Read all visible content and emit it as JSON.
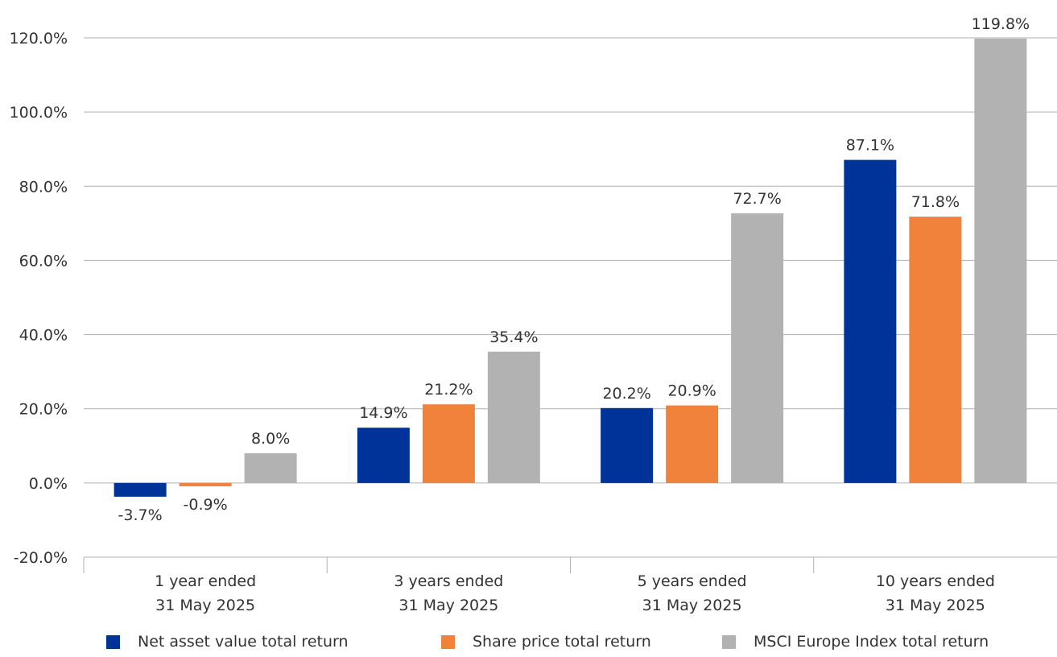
{
  "chart_data": {
    "type": "bar",
    "categories": [
      [
        "1 year ended",
        "31 May 2025"
      ],
      [
        "3 years ended",
        "31 May 2025"
      ],
      [
        "5 years ended",
        "31 May 2025"
      ],
      [
        "10 years ended",
        "31 May 2025"
      ]
    ],
    "series": [
      {
        "name": "Net asset value total return",
        "color": "#003399",
        "values": [
          -3.7,
          14.9,
          20.2,
          87.1
        ],
        "labels": [
          "-3.7%",
          "14.9%",
          "20.2%",
          "87.1%"
        ]
      },
      {
        "name": "Share price total return",
        "color": "#F0823C",
        "values": [
          -0.9,
          21.2,
          20.9,
          71.8
        ],
        "labels": [
          "-0.9%",
          "21.2%",
          "20.9%",
          "71.8%"
        ]
      },
      {
        "name": "MSCI Europe Index total return",
        "color": "#B2B2B2",
        "values": [
          8.0,
          35.4,
          72.7,
          119.8
        ],
        "labels": [
          "8.0%",
          "35.4%",
          "72.7%",
          "119.8%"
        ]
      }
    ],
    "yticks": [
      -20,
      0,
      20,
      40,
      60,
      80,
      100,
      120
    ],
    "ytick_labels": [
      "-20.0%",
      "0.0%",
      "20.0%",
      "40.0%",
      "60.0%",
      "80.0%",
      "100.0%",
      "120.0%"
    ],
    "ylim": [
      -20,
      120
    ],
    "grid": true,
    "legend_position": "bottom",
    "title": "",
    "xlabel": "",
    "ylabel": ""
  }
}
